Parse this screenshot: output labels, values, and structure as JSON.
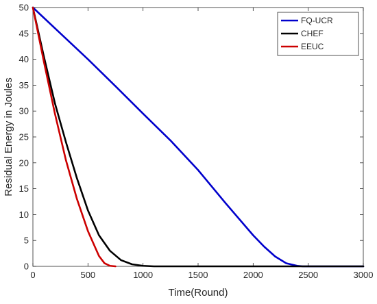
{
  "chart_data": {
    "type": "line",
    "xlabel": "Time(Round)",
    "ylabel": "Residual Energy in Joules",
    "xlim": [
      0,
      3000
    ],
    "ylim": [
      0,
      50
    ],
    "xticks": [
      0,
      500,
      1000,
      1500,
      2000,
      2500,
      3000
    ],
    "yticks": [
      0,
      5,
      10,
      15,
      20,
      25,
      30,
      35,
      40,
      45,
      50
    ],
    "grid": false,
    "legend_position": "top-right",
    "series": [
      {
        "name": "FQ-UCR",
        "color": "#0000CC",
        "x": [
          0,
          250,
          500,
          750,
          1000,
          1250,
          1500,
          1750,
          2000,
          2100,
          2200,
          2300,
          2400,
          2450,
          2500,
          3000
        ],
        "y": [
          50,
          45,
          40,
          34.8,
          29.5,
          24.3,
          18.6,
          12.2,
          6.0,
          3.8,
          1.9,
          0.6,
          0.1,
          0,
          0,
          0
        ]
      },
      {
        "name": "CHEF",
        "color": "#000000",
        "x": [
          0,
          100,
          200,
          300,
          400,
          500,
          600,
          700,
          800,
          900,
          1000,
          1100,
          1200,
          1500,
          2000,
          2500,
          3000
        ],
        "y": [
          50,
          40.5,
          31.5,
          24.0,
          17.0,
          10.8,
          6.0,
          3.0,
          1.2,
          0.4,
          0.1,
          0,
          0,
          0,
          0,
          0,
          0
        ]
      },
      {
        "name": "EEUC",
        "color": "#CC0000",
        "x": [
          0,
          100,
          200,
          300,
          400,
          500,
          600,
          650,
          700,
          750
        ],
        "y": [
          50,
          39.5,
          29.5,
          20.5,
          13.0,
          6.8,
          2.0,
          0.6,
          0.1,
          0
        ]
      }
    ]
  }
}
